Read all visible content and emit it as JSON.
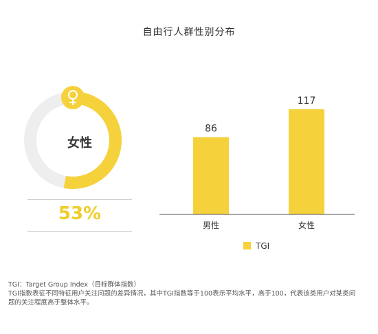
{
  "title": "自由行人群性别分布",
  "donut": {
    "label": "女性",
    "percent": 53,
    "percent_text": "53%",
    "icon": "female-symbol-icon",
    "colors": {
      "fill": "#f5d13b",
      "track": "#eeeeee",
      "text": "#f0cc2a"
    }
  },
  "chart_data": {
    "type": "bar",
    "categories": [
      "男性",
      "女性"
    ],
    "values": [
      86,
      117
    ],
    "legend": [
      "TGI"
    ],
    "legend_position": "bottom",
    "ylim": [
      0,
      130
    ],
    "grid": false,
    "bar_color": "#f5d13b"
  },
  "notes": {
    "line1": "TGI：Target Group Index（目标群体指数）",
    "line2": "TGI指数表征不同特征用户关注问题的差异情况，其中TGI指数等于100表示平均水平，高于100，代表该类用户对某类问",
    "line3": "题的关注程度高于整体水平。"
  }
}
